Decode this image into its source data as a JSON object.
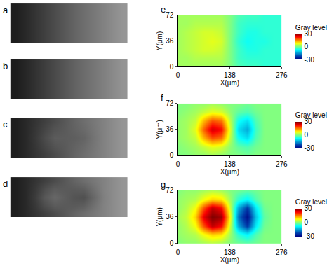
{
  "chart_data": [
    {
      "type": "heatmap",
      "title": "a",
      "color": "gray",
      "zlim": [
        0,
        255
      ],
      "tick_labels": false,
      "z": [
        [
          30,
          40,
          52,
          64,
          76,
          88,
          100,
          110,
          120,
          130,
          140,
          150
        ],
        [
          30,
          40,
          52,
          64,
          76,
          88,
          100,
          110,
          120,
          130,
          140,
          150
        ],
        [
          30,
          40,
          52,
          64,
          76,
          88,
          100,
          110,
          120,
          130,
          140,
          150
        ],
        [
          30,
          40,
          52,
          64,
          76,
          88,
          100,
          110,
          120,
          130,
          140,
          150
        ],
        [
          30,
          40,
          52,
          64,
          76,
          88,
          100,
          110,
          120,
          130,
          140,
          150
        ]
      ]
    },
    {
      "type": "heatmap",
      "title": "b",
      "color": "gray",
      "zlim": [
        0,
        255
      ],
      "tick_labels": false,
      "z": [
        [
          28,
          38,
          50,
          62,
          74,
          86,
          98,
          108,
          118,
          128,
          138,
          148
        ],
        [
          28,
          38,
          50,
          62,
          74,
          86,
          98,
          108,
          118,
          128,
          138,
          148
        ],
        [
          28,
          38,
          50,
          62,
          74,
          86,
          98,
          108,
          118,
          128,
          138,
          148
        ],
        [
          28,
          38,
          50,
          62,
          74,
          86,
          98,
          108,
          118,
          128,
          138,
          148
        ],
        [
          28,
          38,
          50,
          62,
          74,
          86,
          98,
          108,
          118,
          128,
          138,
          148
        ]
      ]
    },
    {
      "type": "heatmap",
      "title": "c",
      "color": "gray",
      "zlim": [
        0,
        255
      ],
      "tick_labels": false,
      "z": [
        [
          30,
          40,
          52,
          64,
          76,
          88,
          100,
          110,
          120,
          130,
          140,
          150
        ],
        [
          30,
          40,
          54,
          70,
          84,
          90,
          98,
          106,
          118,
          130,
          140,
          150
        ],
        [
          30,
          40,
          56,
          76,
          92,
          92,
          94,
          100,
          116,
          130,
          140,
          150
        ],
        [
          30,
          40,
          54,
          70,
          84,
          90,
          98,
          106,
          118,
          130,
          140,
          150
        ],
        [
          30,
          40,
          52,
          64,
          76,
          88,
          100,
          110,
          120,
          130,
          140,
          150
        ]
      ]
    },
    {
      "type": "heatmap",
      "title": "d",
      "color": "gray",
      "zlim": [
        0,
        255
      ],
      "tick_labels": false,
      "z": [
        [
          30,
          40,
          52,
          64,
          76,
          88,
          100,
          110,
          120,
          130,
          140,
          150
        ],
        [
          30,
          40,
          56,
          78,
          92,
          90,
          90,
          94,
          112,
          130,
          140,
          150
        ],
        [
          30,
          40,
          60,
          88,
          104,
          94,
          84,
          80,
          104,
          128,
          140,
          150
        ],
        [
          30,
          40,
          56,
          78,
          92,
          90,
          90,
          94,
          112,
          130,
          140,
          150
        ],
        [
          30,
          40,
          52,
          64,
          76,
          88,
          100,
          110,
          120,
          130,
          140,
          150
        ]
      ]
    },
    {
      "type": "heatmap",
      "title": "e",
      "color": "jet",
      "xlabel": "X(μm)",
      "ylabel": "Y(μm)",
      "xlim": [
        0,
        276
      ],
      "ylim": [
        0,
        72
      ],
      "xticks": [
        0,
        138,
        276
      ],
      "yticks": [
        0,
        36,
        72
      ],
      "colorbar": {
        "title": "Gray level",
        "range": [
          -30,
          30
        ],
        "ticks": [
          -30,
          0,
          30
        ]
      },
      "x": [
        0,
        23,
        46,
        69,
        92,
        115,
        138,
        161,
        184,
        207,
        230,
        253,
        276
      ],
      "y": [
        0,
        12,
        24,
        36,
        48,
        60,
        72
      ],
      "z": [
        [
          2,
          2,
          2,
          2,
          2,
          2,
          0,
          -3,
          -4,
          -4,
          -5,
          -5,
          -5
        ],
        [
          2,
          2,
          3,
          3,
          3,
          3,
          0,
          -4,
          -5,
          -5,
          -5,
          -5,
          -5
        ],
        [
          2,
          3,
          4,
          5,
          5,
          4,
          0,
          -4,
          -6,
          -6,
          -5,
          -5,
          -5
        ],
        [
          2,
          3,
          4,
          5,
          6,
          5,
          0,
          -5,
          -7,
          -6,
          -6,
          -5,
          -5
        ],
        [
          2,
          3,
          4,
          5,
          5,
          4,
          0,
          -4,
          -6,
          -6,
          -5,
          -5,
          -5
        ],
        [
          2,
          2,
          3,
          3,
          3,
          3,
          0,
          -4,
          -5,
          -5,
          -5,
          -5,
          -5
        ],
        [
          2,
          2,
          2,
          2,
          2,
          2,
          0,
          -3,
          -4,
          -4,
          -5,
          -5,
          -5
        ]
      ]
    },
    {
      "type": "heatmap",
      "title": "f",
      "color": "jet",
      "xlabel": "X(μm)",
      "ylabel": "Y(μm)",
      "xlim": [
        0,
        276
      ],
      "ylim": [
        0,
        72
      ],
      "xticks": [
        0,
        138,
        276
      ],
      "yticks": [
        0,
        36,
        72
      ],
      "colorbar": {
        "title": "Gray level",
        "range": [
          -30,
          30
        ],
        "ticks": [
          -30,
          0,
          30
        ]
      },
      "x": [
        0,
        23,
        46,
        69,
        92,
        115,
        138,
        161,
        184,
        207,
        230,
        253,
        276
      ],
      "y": [
        0,
        12,
        24,
        36,
        48,
        60,
        72
      ],
      "z": [
        [
          0,
          0,
          1,
          1,
          2,
          1,
          0,
          0,
          -1,
          0,
          0,
          0,
          0
        ],
        [
          0,
          1,
          2,
          4,
          6,
          5,
          1,
          -2,
          -3,
          -1,
          0,
          0,
          0
        ],
        [
          1,
          2,
          4,
          12,
          18,
          16,
          4,
          -7,
          -10,
          -3,
          0,
          0,
          0
        ],
        [
          1,
          2,
          6,
          17,
          25,
          22,
          6,
          -10,
          -14,
          -4,
          0,
          0,
          0
        ],
        [
          1,
          2,
          4,
          12,
          18,
          16,
          4,
          -7,
          -10,
          -3,
          0,
          0,
          0
        ],
        [
          0,
          1,
          2,
          4,
          6,
          5,
          1,
          -2,
          -3,
          -1,
          0,
          0,
          0
        ],
        [
          0,
          0,
          1,
          1,
          2,
          1,
          0,
          0,
          -1,
          0,
          0,
          0,
          0
        ]
      ]
    },
    {
      "type": "heatmap",
      "title": "g",
      "color": "jet",
      "xlabel": "X(μm)",
      "ylabel": "Y(μm)",
      "xlim": [
        0,
        276
      ],
      "ylim": [
        0,
        72
      ],
      "xticks": [
        0,
        138,
        276
      ],
      "yticks": [
        0,
        36,
        72
      ],
      "colorbar": {
        "title": "Gray level",
        "range": [
          -30,
          30
        ],
        "ticks": [
          -30,
          0,
          30
        ]
      },
      "x": [
        0,
        23,
        46,
        69,
        92,
        115,
        138,
        161,
        184,
        207,
        230,
        253,
        276
      ],
      "y": [
        0,
        12,
        24,
        36,
        48,
        60,
        72
      ],
      "z": [
        [
          0,
          1,
          1,
          2,
          3,
          2,
          0,
          -1,
          -2,
          -1,
          0,
          0,
          0
        ],
        [
          1,
          2,
          3,
          7,
          10,
          9,
          2,
          -5,
          -8,
          -3,
          0,
          0,
          0
        ],
        [
          1,
          3,
          7,
          18,
          26,
          22,
          5,
          -14,
          -23,
          -9,
          -1,
          0,
          0
        ],
        [
          2,
          4,
          10,
          24,
          30,
          28,
          8,
          -18,
          -28,
          -12,
          -2,
          0,
          0
        ],
        [
          1,
          3,
          7,
          18,
          26,
          22,
          5,
          -14,
          -23,
          -9,
          -1,
          0,
          0
        ],
        [
          1,
          2,
          3,
          7,
          10,
          9,
          2,
          -5,
          -8,
          -3,
          0,
          0,
          0
        ],
        [
          0,
          1,
          1,
          2,
          3,
          2,
          0,
          -1,
          -2,
          -1,
          0,
          0,
          0
        ]
      ]
    }
  ]
}
